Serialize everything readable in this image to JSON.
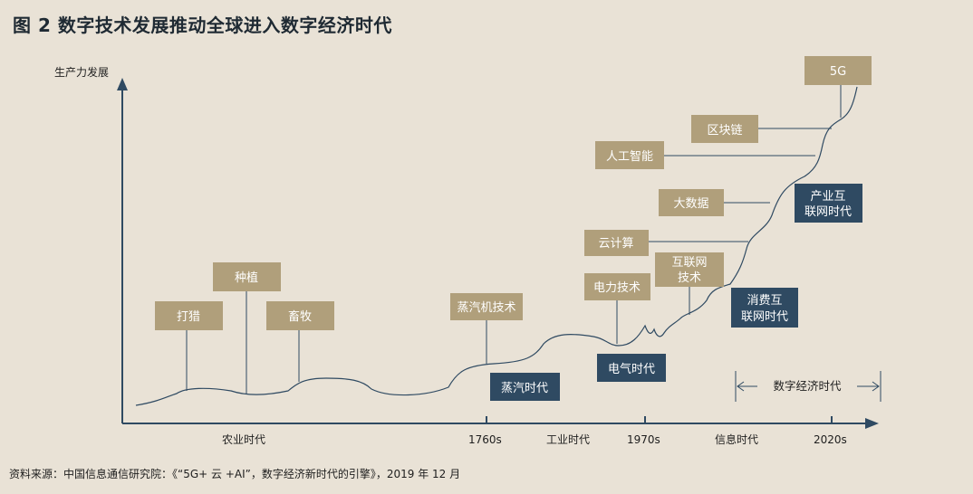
{
  "title": "图 2  数字技术发展推动全球进入数字经济时代",
  "y_axis_label": "生产力发展",
  "source": "资料来源：中国信息通信研究院：《“5G+ 云 +AI”，数字经济新时代的引擎》，2019 年 12 月",
  "x_axis": {
    "eras": [
      "农业时代",
      "工业时代",
      "信息时代"
    ],
    "ticks": [
      "1760s",
      "1970s",
      "2020s"
    ]
  },
  "digital_era_label": "数字经济时代",
  "tech_boxes": [
    "打猎",
    "种植",
    "畜牧",
    "蒸汽机技术",
    "电力技术",
    "云计算",
    "互联网技术",
    "大数据",
    "人工智能",
    "区块链",
    "5G"
  ],
  "era_boxes": [
    "蒸汽时代",
    "电气时代",
    "消费互联网时代",
    "产业互联网时代"
  ],
  "colors": {
    "background": "#e9e2d6",
    "tech_box": "#b09f7b",
    "era_box": "#2f4a62",
    "axis": "#2f4a62"
  }
}
